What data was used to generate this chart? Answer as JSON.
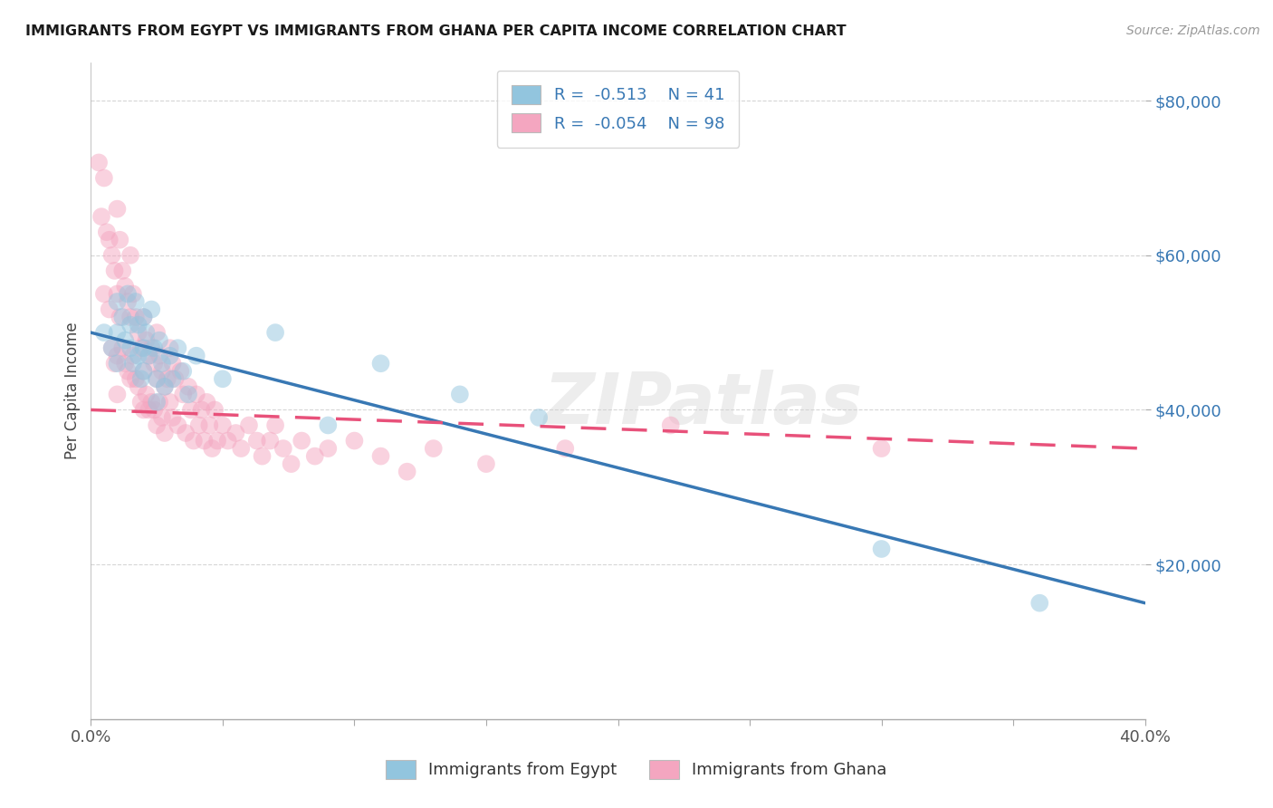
{
  "title": "IMMIGRANTS FROM EGYPT VS IMMIGRANTS FROM GHANA PER CAPITA INCOME CORRELATION CHART",
  "source": "Source: ZipAtlas.com",
  "ylabel": "Per Capita Income",
  "xlim": [
    0.0,
    0.4
  ],
  "ylim": [
    0,
    85000
  ],
  "yticks": [
    20000,
    40000,
    60000,
    80000
  ],
  "ytick_labels": [
    "$20,000",
    "$40,000",
    "$60,000",
    "$80,000"
  ],
  "xticks": [
    0.0,
    0.05,
    0.1,
    0.15,
    0.2,
    0.25,
    0.3,
    0.35,
    0.4
  ],
  "egypt_color": "#92c5de",
  "ghana_color": "#f4a6c0",
  "egypt_line_color": "#3878b4",
  "ghana_line_color": "#e8517a",
  "egypt_R": -0.513,
  "egypt_N": 41,
  "ghana_R": -0.054,
  "ghana_N": 98,
  "legend_label_egypt": "Immigrants from Egypt",
  "legend_label_ghana": "Immigrants from Ghana",
  "watermark": "ZIPatlas",
  "egypt_line_x0": 0.0,
  "egypt_line_y0": 50000,
  "egypt_line_x1": 0.4,
  "egypt_line_y1": 15000,
  "ghana_line_x0": 0.0,
  "ghana_line_y0": 40000,
  "ghana_line_x1": 0.4,
  "ghana_line_y1": 35000,
  "egypt_scatter_x": [
    0.005,
    0.008,
    0.01,
    0.01,
    0.01,
    0.012,
    0.013,
    0.014,
    0.015,
    0.015,
    0.016,
    0.017,
    0.018,
    0.018,
    0.019,
    0.02,
    0.02,
    0.02,
    0.021,
    0.022,
    0.023,
    0.024,
    0.025,
    0.025,
    0.026,
    0.027,
    0.028,
    0.03,
    0.031,
    0.033,
    0.035,
    0.037,
    0.04,
    0.05,
    0.07,
    0.09,
    0.11,
    0.14,
    0.17,
    0.3,
    0.36
  ],
  "egypt_scatter_y": [
    50000,
    48000,
    54000,
    50000,
    46000,
    52000,
    49000,
    55000,
    51000,
    48000,
    46000,
    54000,
    51000,
    47000,
    44000,
    52000,
    48000,
    45000,
    50000,
    47000,
    53000,
    48000,
    44000,
    41000,
    49000,
    46000,
    43000,
    47000,
    44000,
    48000,
    45000,
    42000,
    47000,
    44000,
    50000,
    38000,
    46000,
    42000,
    39000,
    22000,
    15000
  ],
  "ghana_scatter_x": [
    0.003,
    0.004,
    0.005,
    0.005,
    0.006,
    0.007,
    0.007,
    0.008,
    0.008,
    0.009,
    0.009,
    0.01,
    0.01,
    0.01,
    0.01,
    0.011,
    0.011,
    0.012,
    0.012,
    0.013,
    0.013,
    0.014,
    0.014,
    0.015,
    0.015,
    0.015,
    0.016,
    0.016,
    0.017,
    0.017,
    0.018,
    0.018,
    0.019,
    0.019,
    0.02,
    0.02,
    0.02,
    0.021,
    0.021,
    0.022,
    0.022,
    0.023,
    0.023,
    0.024,
    0.024,
    0.025,
    0.025,
    0.025,
    0.026,
    0.026,
    0.027,
    0.027,
    0.028,
    0.028,
    0.029,
    0.03,
    0.03,
    0.031,
    0.031,
    0.032,
    0.033,
    0.034,
    0.035,
    0.036,
    0.037,
    0.038,
    0.039,
    0.04,
    0.041,
    0.042,
    0.043,
    0.044,
    0.045,
    0.046,
    0.047,
    0.048,
    0.05,
    0.052,
    0.055,
    0.057,
    0.06,
    0.063,
    0.065,
    0.068,
    0.07,
    0.073,
    0.076,
    0.08,
    0.085,
    0.09,
    0.1,
    0.11,
    0.12,
    0.13,
    0.15,
    0.18,
    0.22,
    0.3
  ],
  "ghana_scatter_y": [
    72000,
    65000,
    70000,
    55000,
    63000,
    62000,
    53000,
    60000,
    48000,
    58000,
    46000,
    66000,
    55000,
    47000,
    42000,
    62000,
    52000,
    58000,
    48000,
    56000,
    46000,
    54000,
    45000,
    60000,
    52000,
    44000,
    55000,
    47000,
    52000,
    44000,
    50000,
    43000,
    48000,
    41000,
    52000,
    45000,
    40000,
    49000,
    42000,
    47000,
    40000,
    48000,
    41000,
    46000,
    40000,
    50000,
    44000,
    38000,
    47000,
    41000,
    45000,
    39000,
    43000,
    37000,
    44000,
    48000,
    41000,
    46000,
    39000,
    44000,
    38000,
    45000,
    42000,
    37000,
    43000,
    40000,
    36000,
    42000,
    38000,
    40000,
    36000,
    41000,
    38000,
    35000,
    40000,
    36000,
    38000,
    36000,
    37000,
    35000,
    38000,
    36000,
    34000,
    36000,
    38000,
    35000,
    33000,
    36000,
    34000,
    35000,
    36000,
    34000,
    32000,
    35000,
    33000,
    35000,
    38000,
    35000
  ]
}
